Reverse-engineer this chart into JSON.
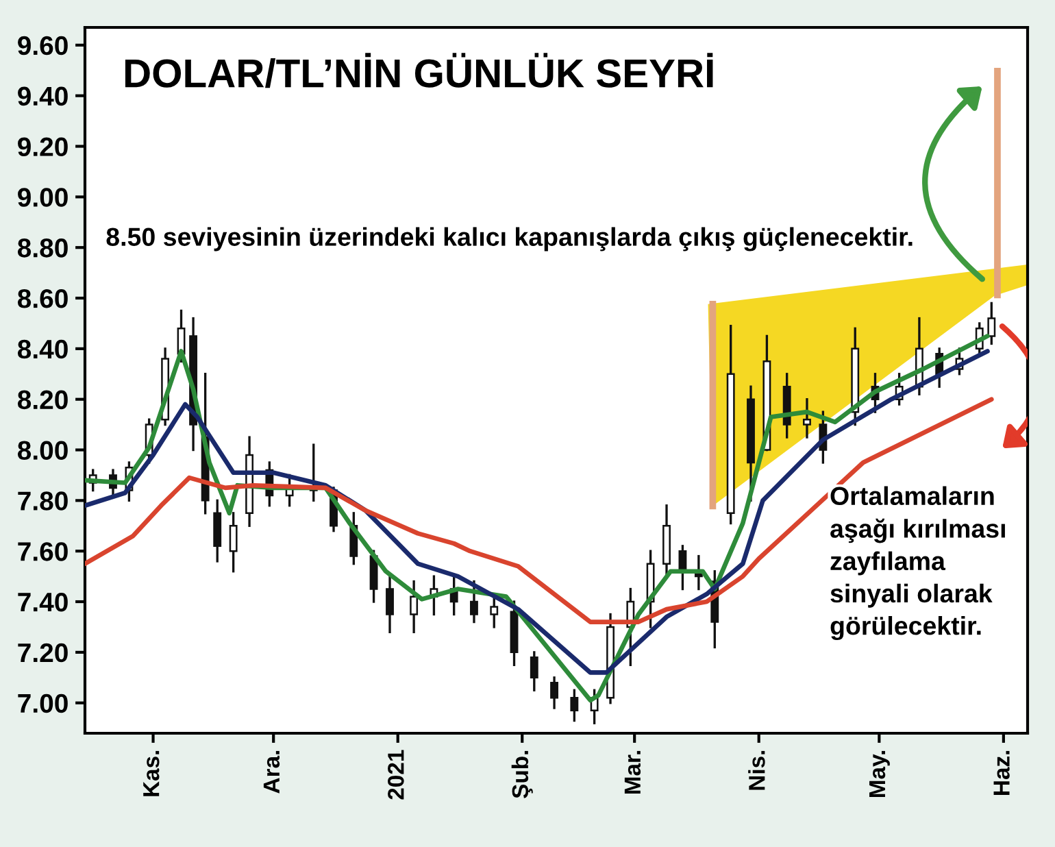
{
  "chart_data": {
    "type": "candlestick",
    "title": "DOLAR/TL’NİN GÜNLÜK SEYRİ",
    "annotations": [
      "8.50 seviyesinin üzerindeki kalıcı kapanışlarda çıkış güçlenecektir.",
      "Ortalamaların\naşağı kırılması\nzayfılama\nsinyali olarak\ngörülecektir."
    ],
    "color": "#111111",
    "x": [
      "2020-10-17",
      "2020-10-22",
      "2020-10-26",
      "2020-10-31",
      "2020-11-04",
      "2020-11-08",
      "2020-11-11",
      "2020-11-14",
      "2020-11-17",
      "2020-11-21",
      "2020-11-25",
      "2020-11-30",
      "2020-12-05",
      "2020-12-11",
      "2020-12-16",
      "2020-12-21",
      "2020-12-26",
      "2020-12-30",
      "2021-01-05",
      "2021-01-10",
      "2021-01-15",
      "2021-01-20",
      "2021-01-25",
      "2021-01-30",
      "2021-02-04",
      "2021-02-09",
      "2021-02-14",
      "2021-02-19",
      "2021-02-23",
      "2021-02-28",
      "2021-03-05",
      "2021-03-09",
      "2021-03-13",
      "2021-03-17",
      "2021-03-21",
      "2021-03-25",
      "2021-03-30",
      "2021-04-03",
      "2021-04-08",
      "2021-04-13",
      "2021-04-17",
      "2021-04-25",
      "2021-04-30",
      "2021-05-06",
      "2021-05-11",
      "2021-05-16",
      "2021-05-21",
      "2021-05-26",
      "2021-05-29"
    ],
    "ohlc": [
      [
        7.87,
        7.92,
        7.84,
        7.9
      ],
      [
        7.9,
        7.92,
        7.82,
        7.85
      ],
      [
        7.84,
        7.95,
        7.8,
        7.93
      ],
      [
        7.98,
        8.12,
        7.95,
        8.1
      ],
      [
        8.12,
        8.4,
        8.1,
        8.36
      ],
      [
        8.38,
        8.55,
        8.35,
        8.48
      ],
      [
        8.45,
        8.52,
        8.0,
        8.1
      ],
      [
        8.05,
        8.3,
        7.75,
        7.8
      ],
      [
        7.75,
        7.8,
        7.56,
        7.62
      ],
      [
        7.6,
        7.75,
        7.52,
        7.7
      ],
      [
        7.75,
        8.05,
        7.7,
        7.98
      ],
      [
        7.92,
        7.95,
        7.78,
        7.82
      ],
      [
        7.82,
        7.9,
        7.78,
        7.86
      ],
      [
        7.85,
        8.02,
        7.8,
        7.84
      ],
      [
        7.84,
        7.85,
        7.68,
        7.7
      ],
      [
        7.7,
        7.75,
        7.55,
        7.58
      ],
      [
        7.58,
        7.6,
        7.4,
        7.45
      ],
      [
        7.45,
        7.5,
        7.28,
        7.35
      ],
      [
        7.35,
        7.48,
        7.28,
        7.42
      ],
      [
        7.42,
        7.5,
        7.35,
        7.45
      ],
      [
        7.45,
        7.5,
        7.35,
        7.4
      ],
      [
        7.4,
        7.48,
        7.32,
        7.35
      ],
      [
        7.35,
        7.42,
        7.3,
        7.38
      ],
      [
        7.36,
        7.4,
        7.15,
        7.2
      ],
      [
        7.18,
        7.2,
        7.05,
        7.1
      ],
      [
        7.08,
        7.1,
        6.98,
        7.02
      ],
      [
        7.02,
        7.05,
        6.93,
        6.97
      ],
      [
        6.97,
        7.05,
        6.92,
        7.02
      ],
      [
        7.02,
        7.35,
        7.0,
        7.3
      ],
      [
        7.3,
        7.45,
        7.15,
        7.4
      ],
      [
        7.4,
        7.6,
        7.3,
        7.55
      ],
      [
        7.55,
        7.78,
        7.5,
        7.7
      ],
      [
        7.6,
        7.62,
        7.45,
        7.52
      ],
      [
        7.52,
        7.58,
        7.45,
        7.5
      ],
      [
        7.48,
        7.52,
        7.22,
        7.32
      ],
      [
        7.75,
        8.49,
        7.71,
        8.3
      ],
      [
        8.2,
        8.25,
        7.8,
        7.95
      ],
      [
        8.0,
        8.45,
        8.0,
        8.35
      ],
      [
        8.25,
        8.3,
        8.05,
        8.1
      ],
      [
        8.1,
        8.2,
        8.05,
        8.12
      ],
      [
        8.1,
        8.15,
        7.95,
        8.0
      ],
      [
        8.15,
        8.48,
        8.1,
        8.4
      ],
      [
        8.25,
        8.3,
        8.15,
        8.2
      ],
      [
        8.2,
        8.3,
        8.18,
        8.25
      ],
      [
        8.25,
        8.52,
        8.22,
        8.4
      ],
      [
        8.38,
        8.4,
        8.25,
        8.3
      ],
      [
        8.32,
        8.4,
        8.3,
        8.36
      ],
      [
        8.4,
        8.5,
        8.38,
        8.48
      ],
      [
        8.45,
        8.58,
        8.42,
        8.52
      ]
    ],
    "series": [
      {
        "type": "line",
        "color": "#2e8b3a",
        "x": [
          "2020-10-15",
          "2020-10-25",
          "2020-10-31",
          "2020-11-08",
          "2020-11-11",
          "2020-11-15",
          "2020-11-20",
          "2020-11-22",
          "2020-12-01",
          "2020-12-14",
          "2020-12-20",
          "2020-12-29",
          "2021-01-07",
          "2021-01-16",
          "2021-01-28",
          "2021-02-18",
          "2021-02-20",
          "2021-03-02",
          "2021-03-10",
          "2021-03-18",
          "2021-03-21",
          "2021-03-28",
          "2021-04-04",
          "2021-04-13",
          "2021-04-20",
          "2021-04-30",
          "2021-05-12",
          "2021-05-28"
        ],
        "values": [
          7.88,
          7.87,
          8.01,
          8.39,
          8.24,
          7.95,
          7.75,
          7.86,
          7.85,
          7.85,
          7.71,
          7.52,
          7.41,
          7.45,
          7.42,
          7.01,
          7.03,
          7.35,
          7.52,
          7.52,
          7.45,
          7.71,
          8.13,
          8.15,
          8.11,
          8.23,
          8.32,
          8.45
        ]
      },
      {
        "type": "line",
        "color": "#1a2a6c",
        "x": [
          "2020-10-15",
          "2020-10-25",
          "2020-11-01",
          "2020-11-09",
          "2020-11-12",
          "2020-11-21",
          "2020-12-01",
          "2020-12-14",
          "2020-12-24",
          "2021-01-06",
          "2021-01-16",
          "2021-01-31",
          "2021-02-18",
          "2021-02-22",
          "2021-03-09",
          "2021-03-19",
          "2021-03-28",
          "2021-04-02",
          "2021-04-17",
          "2021-05-04",
          "2021-05-28"
        ],
        "values": [
          7.78,
          7.83,
          7.98,
          8.18,
          8.13,
          7.91,
          7.91,
          7.86,
          7.76,
          7.55,
          7.5,
          7.37,
          7.12,
          7.12,
          7.34,
          7.43,
          7.55,
          7.8,
          8.04,
          8.2,
          8.39
        ]
      },
      {
        "type": "line",
        "color": "#d9442e",
        "x": [
          "2020-10-15",
          "2020-10-27",
          "2020-11-03",
          "2020-11-10",
          "2020-11-19",
          "2020-11-26",
          "2020-12-14",
          "2020-12-24",
          "2021-01-06",
          "2021-01-15",
          "2021-01-19",
          "2021-01-31",
          "2021-02-18",
          "2021-03-02",
          "2021-03-09",
          "2021-03-19",
          "2021-03-28",
          "2021-04-01",
          "2021-04-14",
          "2021-04-27",
          "2021-05-29"
        ],
        "values": [
          7.55,
          7.66,
          7.78,
          7.89,
          7.85,
          7.86,
          7.85,
          7.76,
          7.67,
          7.63,
          7.6,
          7.54,
          7.32,
          7.32,
          7.37,
          7.4,
          7.5,
          7.57,
          7.76,
          7.95,
          8.2
        ]
      }
    ],
    "xlim": [
      "2020-10-15",
      "2021-06-07"
    ],
    "xticks": [
      {
        "value": "2020-11-01",
        "label": "Kas."
      },
      {
        "value": "2020-12-01",
        "label": "Ara."
      },
      {
        "value": "2021-01-01",
        "label": "2021"
      },
      {
        "value": "2021-02-01",
        "label": "Şub."
      },
      {
        "value": "2021-03-01",
        "label": "Mar."
      },
      {
        "value": "2021-04-01",
        "label": "Nis."
      },
      {
        "value": "2021-05-01",
        "label": "May."
      },
      {
        "value": "2021-06-01",
        "label": "Haz."
      }
    ],
    "ylim": [
      6.88,
      9.67
    ],
    "yticks": [
      {
        "value": 7.0,
        "label": "7.00"
      },
      {
        "value": 7.2,
        "label": "7.20"
      },
      {
        "value": 7.4,
        "label": "7.40"
      },
      {
        "value": 7.6,
        "label": "7.60"
      },
      {
        "value": 7.8,
        "label": "7.80"
      },
      {
        "value": 8.0,
        "label": "8.00"
      },
      {
        "value": 8.2,
        "label": "8.20"
      },
      {
        "value": 8.4,
        "label": "8.40"
      },
      {
        "value": 8.6,
        "label": "8.60"
      },
      {
        "value": 8.8,
        "label": "8.80"
      },
      {
        "value": 9.0,
        "label": "9.00"
      },
      {
        "value": 9.2,
        "label": "9.20"
      },
      {
        "value": 9.4,
        "label": "9.40"
      },
      {
        "value": 9.6,
        "label": "9.60"
      }
    ],
    "grid": false,
    "legend": false
  }
}
